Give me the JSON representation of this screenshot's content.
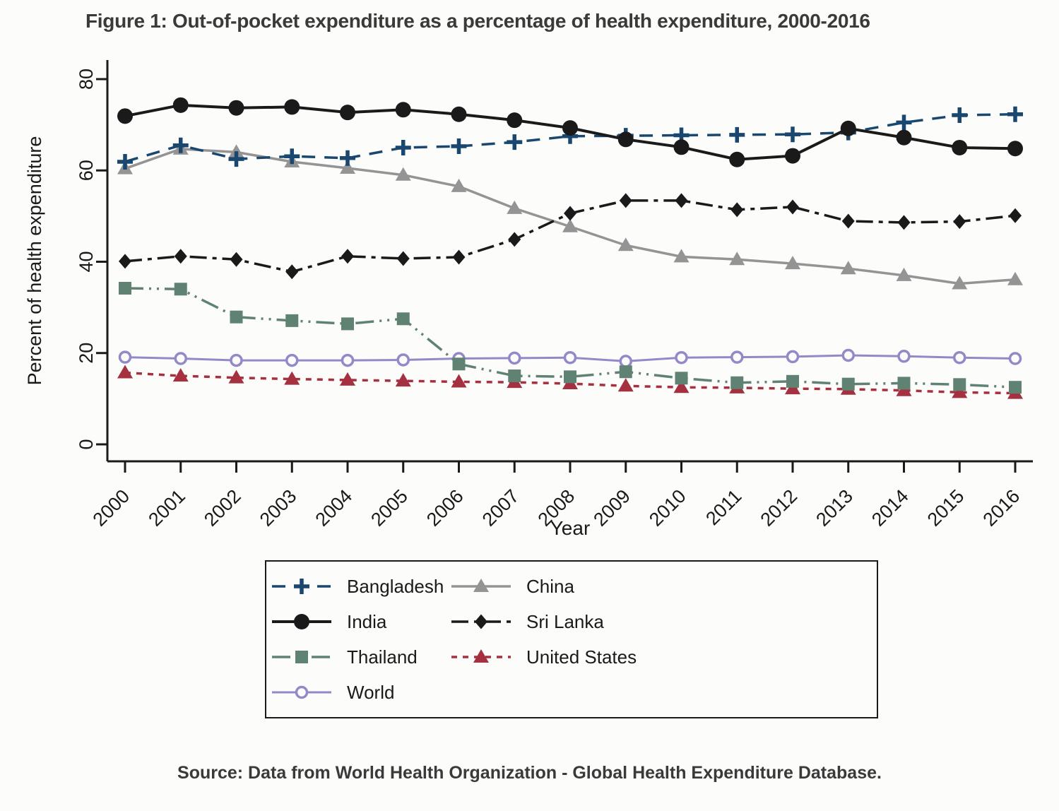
{
  "figure": {
    "title": "Figure 1: Out-of-pocket expenditure as a percentage of health expenditure, 2000-2016",
    "source": "Source: Data from World Health Organization - Global Health Expenditure Database."
  },
  "theme": {
    "background": "#fcfcfa",
    "title_text": "#3a3a3a",
    "axis_text": "#000000",
    "legend_border": "#1a1a1a"
  },
  "chart_data": {
    "type": "line",
    "title": "Figure 1: Out-of-pocket expenditure as a percentage of health expenditure, 2000-2016",
    "xlabel": "Year",
    "ylabel": "Percent of health expenditure",
    "x": [
      2000,
      2001,
      2002,
      2003,
      2004,
      2005,
      2006,
      2007,
      2008,
      2009,
      2010,
      2011,
      2012,
      2013,
      2014,
      2015,
      2016
    ],
    "ylim": [
      0,
      80
    ],
    "yticks": [
      0,
      20,
      40,
      60,
      80
    ],
    "grid": false,
    "legend_position": "bottom-boxed-two-columns",
    "series": [
      {
        "name": "World",
        "color": "#9489c8",
        "line": "solid",
        "marker": "circle-open",
        "values": [
          19.1,
          18.8,
          18.4,
          18.4,
          18.4,
          18.5,
          18.8,
          18.9,
          19.0,
          18.2,
          19.0,
          19.1,
          19.2,
          19.5,
          19.3,
          19.0,
          18.8
        ]
      },
      {
        "name": "United States",
        "color": "#a5303f",
        "line": "dotted",
        "marker": "triangle-filled",
        "values": [
          15.7,
          15.0,
          14.6,
          14.3,
          14.1,
          13.9,
          13.7,
          13.6,
          13.3,
          12.8,
          12.5,
          12.4,
          12.2,
          12.1,
          11.8,
          11.4,
          11.2
        ]
      },
      {
        "name": "Thailand",
        "color": "#5f8272",
        "line": "dash-dot-dot",
        "marker": "square-filled",
        "values": [
          34.2,
          34.0,
          27.9,
          27.1,
          26.4,
          27.5,
          17.6,
          15.0,
          14.8,
          15.9,
          14.5,
          13.5,
          13.8,
          13.2,
          13.4,
          13.1,
          12.5
        ]
      },
      {
        "name": "China",
        "color": "#949494",
        "line": "solid",
        "marker": "triangle-filled",
        "values": [
          60.4,
          64.7,
          64.0,
          61.9,
          60.5,
          59.0,
          56.5,
          51.7,
          47.7,
          43.6,
          41.1,
          40.5,
          39.6,
          38.5,
          37.0,
          35.2,
          36.1
        ]
      },
      {
        "name": "Sri Lanka",
        "color": "#1a1a1a",
        "line": "dash-dot",
        "marker": "diamond-filled",
        "values": [
          40.1,
          41.2,
          40.5,
          37.8,
          41.2,
          40.7,
          41.0,
          44.9,
          50.6,
          53.4,
          53.4,
          51.4,
          52.0,
          48.9,
          48.6,
          48.8,
          50.1
        ]
      },
      {
        "name": "Bangladesh",
        "color": "#1a476f",
        "line": "dashed",
        "marker": "plus",
        "values": [
          61.9,
          65.5,
          62.5,
          63.1,
          62.7,
          65.0,
          65.3,
          66.2,
          67.5,
          67.6,
          67.7,
          67.8,
          67.9,
          68.3,
          70.5,
          72.1,
          72.3
        ]
      },
      {
        "name": "India",
        "color": "#1a1a1a",
        "line": "solid",
        "marker": "circle-filled",
        "values": [
          71.9,
          74.3,
          73.7,
          73.9,
          72.7,
          73.3,
          72.3,
          71.0,
          69.3,
          66.8,
          65.1,
          62.4,
          63.2,
          69.2,
          67.2,
          65.0,
          64.8
        ]
      }
    ],
    "legend_columns": [
      [
        "Bangladesh",
        "India",
        "Thailand",
        "World"
      ],
      [
        "China",
        "Sri Lanka",
        "United States"
      ]
    ]
  }
}
